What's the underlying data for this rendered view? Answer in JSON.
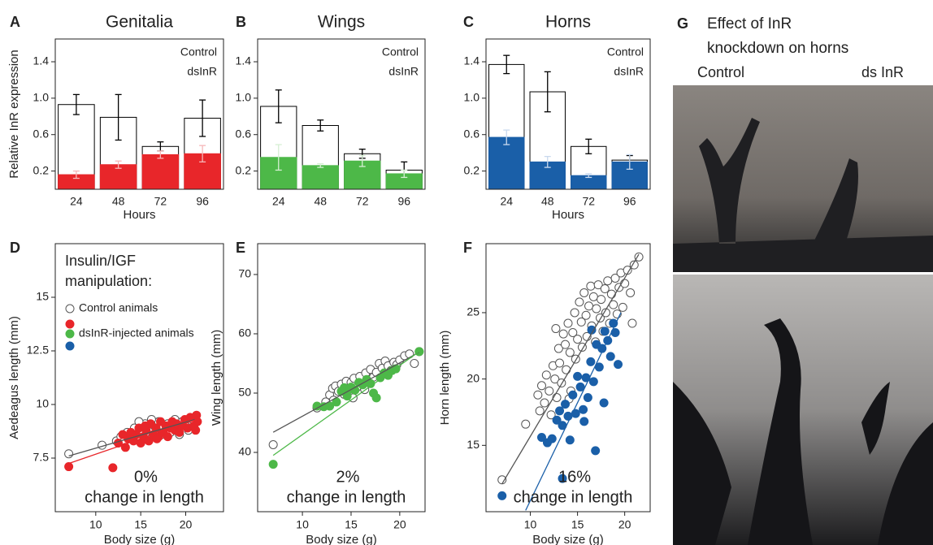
{
  "chart_data": [
    {
      "type": "bar",
      "panel": "A",
      "title": "Genitalia",
      "title_color": "#e8262a",
      "categories": [
        "24",
        "48",
        "72",
        "96"
      ],
      "xlabel": "Hours",
      "ylabel": "Relative InR expression",
      "ylim": [
        0,
        1.65
      ],
      "yticks": [
        0.2,
        0.6,
        {
          "value": 1,
          "label": "1.0"
        },
        1.4
      ],
      "series": [
        {
          "name": "Control",
          "color": "#ffffff",
          "edge": "#000000",
          "error_color": "#000000",
          "values": [
            0.93,
            0.79,
            0.47,
            0.78
          ],
          "errors": [
            0.11,
            0.25,
            0.05,
            0.2
          ]
        },
        {
          "name": "dsInR",
          "color": "#e8262a",
          "edge": "#e8262a",
          "error_color": "#f6b7b8",
          "values": [
            0.16,
            0.27,
            0.38,
            0.39
          ],
          "errors": [
            0.04,
            0.04,
            0.04,
            0.09
          ]
        }
      ]
    },
    {
      "type": "bar",
      "panel": "B",
      "title": "Wings",
      "title_color": "#4db848",
      "categories": [
        "24",
        "48",
        "72",
        "96"
      ],
      "ylim": [
        0,
        1.65
      ],
      "yticks": [
        0.2,
        0.6,
        {
          "value": 1,
          "label": "1.0"
        },
        1.4
      ],
      "series": [
        {
          "name": "Control",
          "color": "#ffffff",
          "edge": "#000000",
          "error_color": "#000000",
          "values": [
            0.91,
            0.7,
            0.39,
            0.21
          ],
          "errors": [
            0.18,
            0.06,
            0.05,
            0.09
          ]
        },
        {
          "name": "dsInR",
          "color": "#4db848",
          "edge": "#4db848",
          "error_color": "#d6efd3",
          "values": [
            0.35,
            0.26,
            0.31,
            0.17
          ],
          "errors": [
            0.14,
            0.02,
            0.06,
            0.04
          ]
        }
      ]
    },
    {
      "type": "bar",
      "panel": "C",
      "title": "Horns",
      "title_color": "#1a5fa8",
      "categories": [
        "24",
        "48",
        "72",
        "96"
      ],
      "xlabel": "Hours",
      "ylim": [
        0,
        1.65
      ],
      "yticks": [
        0.2,
        0.6,
        {
          "value": 1,
          "label": "1.0"
        },
        1.4
      ],
      "series": [
        {
          "name": "Control",
          "color": "#ffffff",
          "edge": "#000000",
          "error_color": "#000000",
          "values": [
            1.37,
            1.07,
            0.47,
            0.32
          ],
          "errors": [
            0.1,
            0.22,
            0.08,
            0.05
          ]
        },
        {
          "name": "dsInR",
          "color": "#1a5fa8",
          "edge": "#1a5fa8",
          "error_color": "#c9d9ee",
          "values": [
            0.57,
            0.3,
            0.15,
            0.3
          ],
          "errors": [
            0.08,
            0.06,
            0.02,
            0.08
          ]
        }
      ]
    },
    {
      "type": "scatter",
      "panel": "D",
      "xlabel": "Body size (g)",
      "ylabel": "Aedeagus length (mm)",
      "xlim": [
        5.5,
        24.2
      ],
      "ylim": [
        5,
        17.5
      ],
      "xticks": [
        10,
        15,
        20
      ],
      "yticks": [
        7.5,
        10,
        12.5,
        15
      ],
      "legend_title": [
        "Insulin/IGF",
        "manipulation:"
      ],
      "annotation": [
        "0%",
        "change in length"
      ],
      "annotation_color": "#e8262a",
      "series": [
        {
          "name": "Control animals",
          "color": "#ffffff",
          "edge": "#555555",
          "fit_color": "#555555",
          "x": [
            7,
            10.7,
            12.3,
            12.8,
            13.2,
            13.5,
            14,
            14.3,
            14.6,
            15,
            15.2,
            15.5,
            15.8,
            16,
            16.3,
            16.5,
            16.8,
            17,
            17.3,
            17.5,
            17.8,
            18,
            18.3,
            18.6,
            19,
            19.3,
            19.6,
            20,
            20.3,
            20.8,
            14.8,
            16.2,
            18.8
          ],
          "y": [
            7.7,
            8.1,
            8.3,
            8.5,
            8.3,
            8.7,
            8.5,
            8.9,
            8.4,
            8.8,
            8.6,
            9.1,
            8.7,
            8.9,
            8.5,
            9.0,
            8.8,
            9.2,
            8.6,
            9.0,
            8.8,
            9.1,
            8.7,
            9.0,
            8.9,
            8.6,
            9.2,
            9.0,
            8.8,
            9.3,
            9.2,
            9.3,
            9.3
          ],
          "fit_x": [
            7,
            21
          ],
          "fit_y": [
            7.6,
            9.3
          ]
        },
        {
          "name": "dsInR-injected animals",
          "color": "#e8262a",
          "edge": "#e8262a",
          "fit_color": "#e8262a",
          "x": [
            7,
            11.9,
            12.5,
            13,
            13.3,
            13.6,
            13.9,
            14.2,
            14.5,
            14.8,
            15,
            15.3,
            15.6,
            15.9,
            16.1,
            16.4,
            16.7,
            17,
            17.2,
            17.5,
            17.8,
            18,
            18.3,
            18.5,
            18.8,
            19,
            19.3,
            19.6,
            19.9,
            20.2,
            20.5,
            20.9,
            21.2,
            21.1,
            21.3,
            15.5,
            16.8
          ],
          "y": [
            7.1,
            7.05,
            8.2,
            8.6,
            8.0,
            8.4,
            8.7,
            8.3,
            8.6,
            8.9,
            8.2,
            8.5,
            8.8,
            8.3,
            9.1,
            8.6,
            8.9,
            8.5,
            9.2,
            8.7,
            9.0,
            8.5,
            8.9,
            9.2,
            8.8,
            9.1,
            8.7,
            9.0,
            9.3,
            8.9,
            9.4,
            9.0,
            9.5,
            8.8,
            9.2,
            9.0,
            8.4
          ],
          "fit_x": [
            7,
            21.2
          ],
          "fit_y": [
            7.25,
            9.3
          ]
        }
      ]
    },
    {
      "type": "scatter",
      "panel": "E",
      "xlabel": "Body size (g)",
      "ylabel": "Wing length (mm)",
      "xlim": [
        5.4,
        22.6
      ],
      "ylim": [
        30,
        75.2
      ],
      "xticks": [
        10,
        15,
        20
      ],
      "yticks": [
        40,
        50,
        60,
        70
      ],
      "annotation": [
        "2%",
        "change in length"
      ],
      "annotation_color": "#4db848",
      "series": [
        {
          "color": "#ffffff",
          "edge": "#555555",
          "fit_color": "#555555",
          "x": [
            7,
            11.5,
            12.4,
            12.8,
            13.1,
            13.4,
            13.7,
            14,
            14.3,
            14.5,
            14.8,
            15,
            15.3,
            15.6,
            15.9,
            16.2,
            16.5,
            16.8,
            17,
            17.3,
            17.6,
            17.9,
            18.2,
            18.5,
            18.8,
            19.1,
            19.4,
            19.7,
            20,
            20.5,
            21,
            21.5,
            22,
            15.2,
            13.2,
            16.4
          ],
          "y": [
            41.3,
            47.5,
            48.5,
            49.7,
            50.8,
            51.2,
            50.3,
            51.5,
            49.8,
            52,
            50.7,
            51.8,
            52.5,
            51,
            52.8,
            51.6,
            53.4,
            52.2,
            54,
            52.7,
            53.5,
            55,
            54.2,
            55.4,
            54.6,
            53.8,
            55.2,
            54.8,
            55.6,
            56.3,
            56.6,
            55,
            57,
            49.2,
            48.8,
            50.6
          ],
          "fit_x": [
            7,
            22
          ],
          "fit_y": [
            43.4,
            56.9
          ]
        },
        {
          "color": "#4db848",
          "edge": "#4db848",
          "fit_color": "#4db848",
          "x": [
            7,
            11.5,
            12.2,
            12.8,
            13.5,
            14,
            14.3,
            14.6,
            15,
            15.4,
            15.8,
            16.2,
            16.6,
            17,
            17.3,
            17.6,
            18,
            18.4,
            18.8,
            19.2,
            19.6,
            22,
            14.8
          ],
          "y": [
            38,
            47.8,
            47.7,
            47.8,
            48.5,
            50.3,
            50.9,
            49.5,
            51,
            50.5,
            51.8,
            51.4,
            52.3,
            51.6,
            50,
            49.2,
            52.6,
            53.4,
            53,
            53.8,
            54.1,
            57,
            50.6
          ],
          "fit_x": [
            7,
            22
          ],
          "fit_y": [
            39.5,
            57
          ]
        }
      ]
    },
    {
      "type": "scatter",
      "panel": "F",
      "xlabel": "Body size (g)",
      "ylabel": "Horn length (mm)",
      "xlim": [
        5.3,
        22.7
      ],
      "ylim": [
        10,
        30.2
      ],
      "xticks": [
        10,
        15,
        20
      ],
      "yticks": [
        15,
        20,
        25
      ],
      "annotation": [
        "16%",
        "change in length"
      ],
      "annotation_color": "#1a5fa8",
      "series": [
        {
          "color": "#ffffff",
          "edge": "#555555",
          "fit_color": "#555555",
          "x": [
            7,
            9.5,
            10.8,
            11,
            11.2,
            11.5,
            11.7,
            12,
            12.2,
            12.4,
            12.6,
            12.8,
            13,
            13.1,
            13.3,
            13.5,
            13.7,
            13.8,
            14,
            14.2,
            14.3,
            14.5,
            14.7,
            14.8,
            15,
            15.2,
            15.4,
            15.5,
            15.7,
            15.9,
            16,
            16.2,
            16.4,
            16.5,
            16.7,
            16.9,
            17,
            17.2,
            17.4,
            17.5,
            17.7,
            17.9,
            18,
            18.2,
            18.4,
            18.6,
            18.8,
            19,
            19.2,
            19.4,
            19.6,
            19.8,
            20,
            20.3,
            20.6,
            21,
            21.5,
            20.8,
            12.7,
            14.1
          ],
          "y": [
            12.4,
            16.6,
            18.8,
            17.6,
            19.5,
            18.2,
            20.3,
            19.1,
            17.3,
            21,
            20,
            18.6,
            22.3,
            21.2,
            19.7,
            23.4,
            22.6,
            20.7,
            24.2,
            22,
            19.1,
            23.5,
            25,
            21.5,
            23,
            25.8,
            24.3,
            22.4,
            26.5,
            24.8,
            23.2,
            25.5,
            27,
            24,
            26.2,
            22.8,
            25.3,
            27.1,
            24.6,
            26,
            23.6,
            26.8,
            25,
            27.4,
            24.2,
            26.4,
            25.6,
            27.6,
            24.9,
            26.9,
            28,
            25.4,
            27.2,
            28.2,
            26.5,
            28.6,
            29.2,
            24.2,
            23.8,
            18.5
          ],
          "fit_x": [
            7,
            21.5
          ],
          "fit_y": [
            12.1,
            29.4
          ]
        },
        {
          "color": "#1a5fa8",
          "edge": "#1a5fa8",
          "fit_color": "#1a5fa8",
          "x": [
            7,
            11.2,
            11.8,
            12.3,
            12.8,
            13.1,
            13.4,
            13.4,
            13.7,
            14,
            14.2,
            14.5,
            14.8,
            15,
            15.3,
            15.6,
            15.9,
            16.1,
            16.4,
            16.7,
            16.9,
            17,
            17.3,
            17.6,
            17.9,
            18.2,
            18.5,
            18.8,
            19,
            19.3,
            16.5,
            15.7,
            17.8
          ],
          "y": [
            11.2,
            15.6,
            15.2,
            15.5,
            16.9,
            17.6,
            16.5,
            12.5,
            18.1,
            17.2,
            15.4,
            18.8,
            17.4,
            20.2,
            19.4,
            17.7,
            20.1,
            18.6,
            21.3,
            19.8,
            14.6,
            22.6,
            20.9,
            22.3,
            23.6,
            22.9,
            21.7,
            24.2,
            23.5,
            21.1,
            23.7,
            16.8,
            18.2
          ],
          "fit_x": [
            9.5,
            19.6
          ],
          "fit_y": [
            10.1,
            25
          ]
        }
      ]
    }
  ],
  "photo": {
    "panel": "G",
    "title": [
      "Effect of InR",
      "knockdown on horns"
    ],
    "left_label": "Control",
    "right_label": "ds InR",
    "right_label_color": "#1a5fa8"
  }
}
